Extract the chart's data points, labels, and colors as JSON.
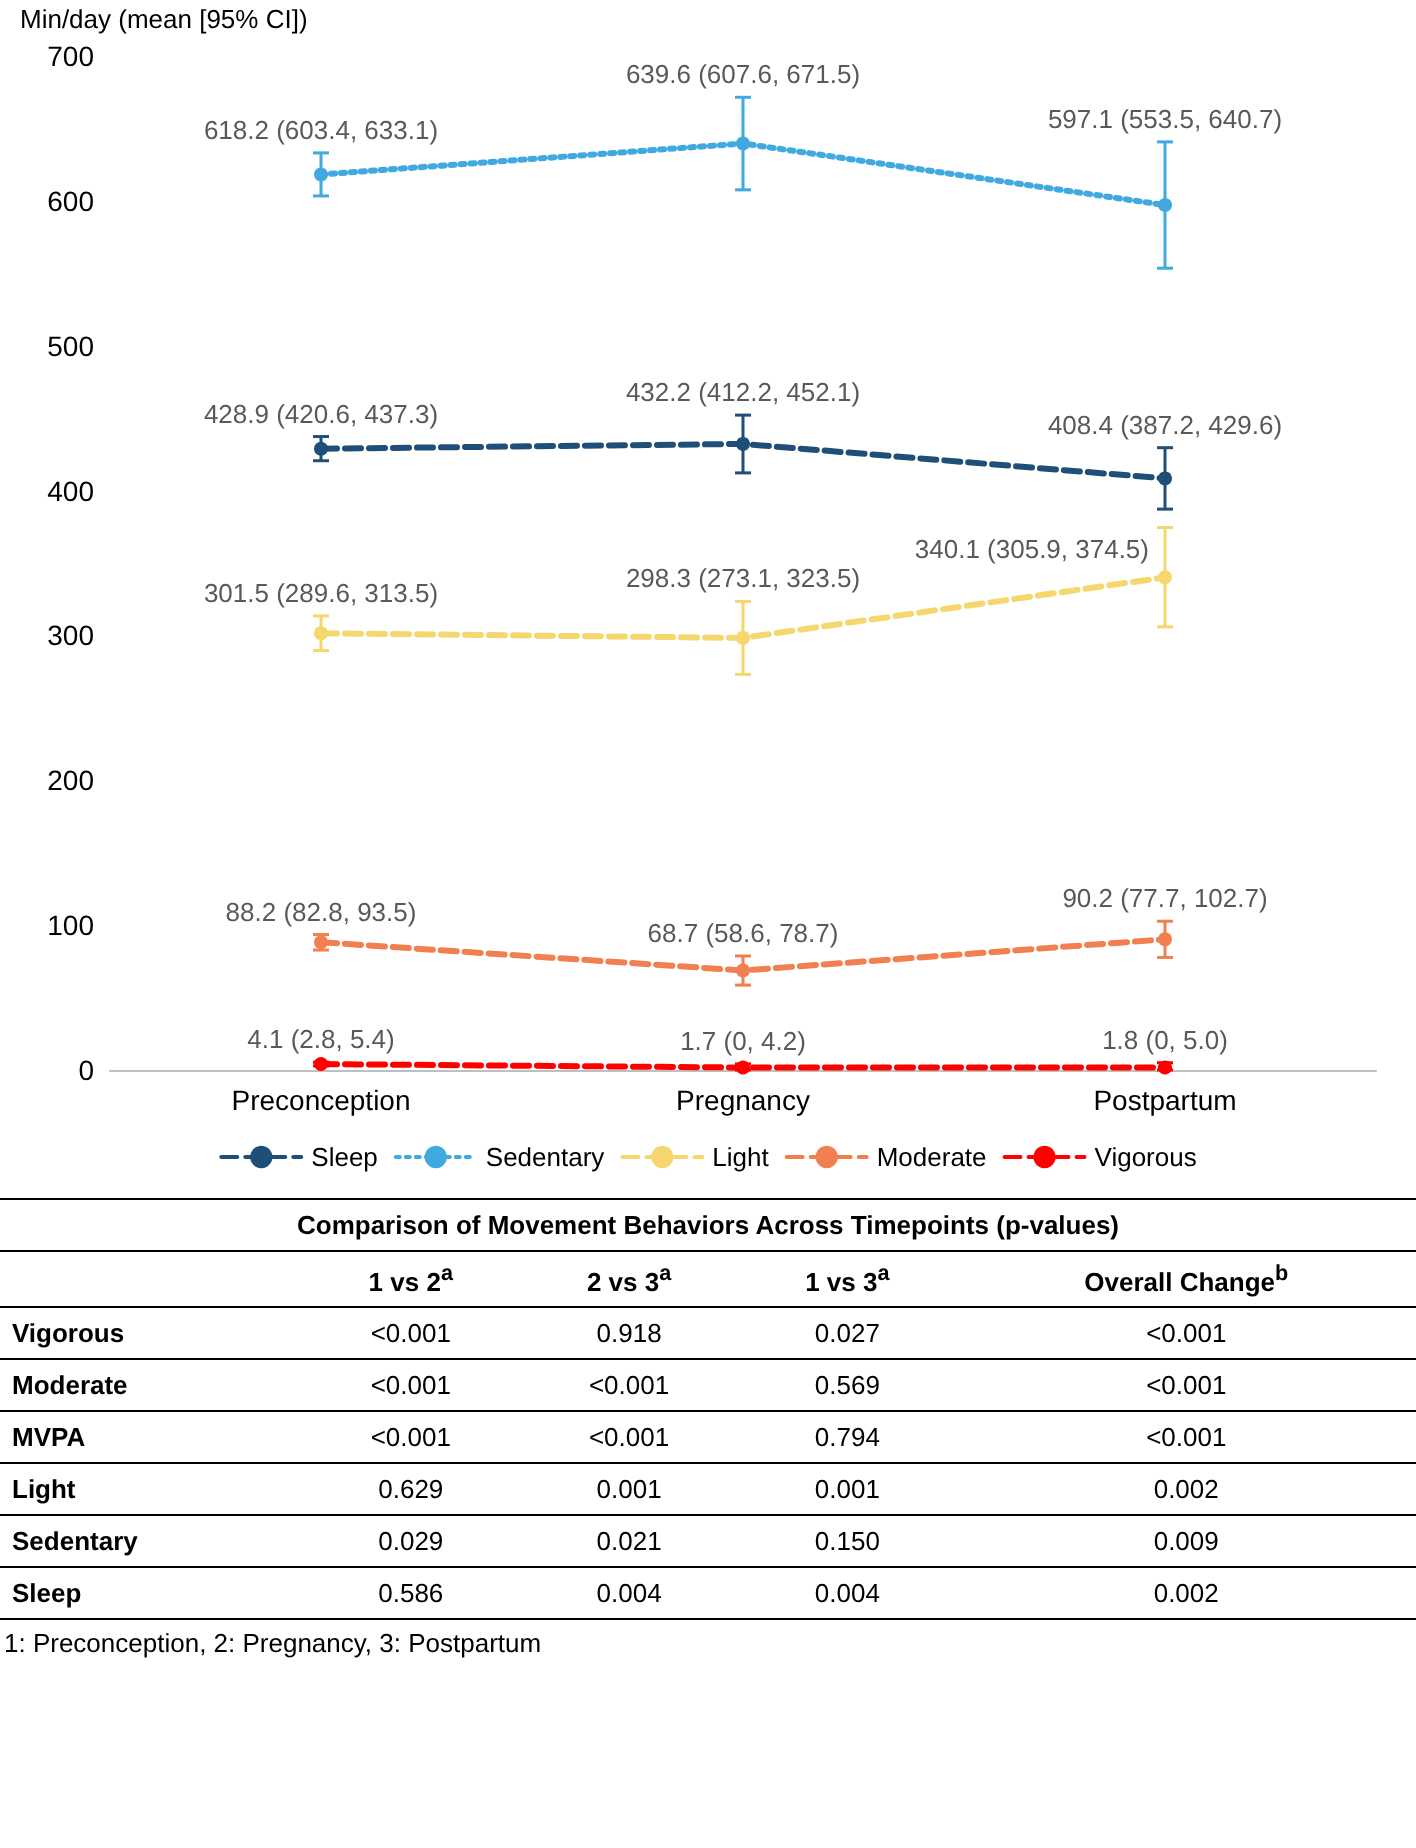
{
  "chart_data": [
    {
      "type": "line",
      "ylabel": "Min/day (mean [95% CI])",
      "categories": [
        "Preconception",
        "Pregnancy",
        "Postpartum"
      ],
      "ylim": [
        0,
        700
      ],
      "yticks": [
        0,
        100,
        200,
        300,
        400,
        500,
        600,
        700
      ],
      "grid": false,
      "legend": "bottom",
      "marker": "circle",
      "series": [
        {
          "name": "Sleep",
          "color": "#1f4e79",
          "line_style": "dashed",
          "values": [
            428.9,
            432.2,
            408.4
          ],
          "errors": [
            [
              420.6,
              437.3
            ],
            [
              412.2,
              452.1
            ],
            [
              387.2,
              429.6
            ]
          ],
          "value_labels": [
            "428.9 (420.6, 437.3)",
            "432.2 (412.2, 452.1)",
            "408.4 (387.2, 429.6)"
          ]
        },
        {
          "name": "Sedentary",
          "color": "#3fa9e0",
          "line_style": "dotted",
          "values": [
            618.2,
            639.6,
            597.1
          ],
          "errors": [
            [
              603.4,
              633.1
            ],
            [
              607.6,
              671.5
            ],
            [
              553.5,
              640.7
            ]
          ],
          "value_labels": [
            "618.2 (603.4, 633.1)",
            "639.6 (607.6, 671.5)",
            "597.1 (553.5, 640.7)"
          ]
        },
        {
          "name": "Light",
          "color": "#f5d76e",
          "line_style": "dashed",
          "values": [
            301.5,
            298.3,
            340.1
          ],
          "errors": [
            [
              289.6,
              313.5
            ],
            [
              273.1,
              323.5
            ],
            [
              305.9,
              374.5
            ]
          ],
          "value_labels": [
            "301.5 (289.6, 313.5)",
            "298.3 (273.1, 323.5)",
            "340.1 (305.9, 374.5)"
          ]
        },
        {
          "name": "Moderate",
          "color": "#f08050",
          "line_style": "dashed",
          "values": [
            88.2,
            68.7,
            90.2
          ],
          "errors": [
            [
              82.8,
              93.5
            ],
            [
              58.6,
              78.7
            ],
            [
              77.7,
              102.7
            ]
          ],
          "value_labels": [
            "88.2 (82.8, 93.5)",
            "68.7 (58.6, 78.7)",
            "90.2 (77.7, 102.7)"
          ]
        },
        {
          "name": "Vigorous",
          "color": "#ff0000",
          "line_style": "dashed",
          "values": [
            4.1,
            1.7,
            1.8
          ],
          "errors": [
            [
              2.8,
              5.4
            ],
            [
              0,
              4.2
            ],
            [
              0,
              5.0
            ]
          ],
          "value_labels": [
            "4.1 (2.8, 5.4)",
            "1.7 (0, 4.2)",
            "1.8 (0, 5.0)"
          ]
        }
      ]
    },
    {
      "type": "other",
      "title": "Comparison of Movement Behaviors Across Timepoints (p-values)",
      "categories": [
        "1 vs 2$^{a}$",
        "2 vs 3$^{a}$",
        "1 vs 3$^{a}$",
        "Overall Change$^{b}$"
      ],
      "y_categories": [
        "Vigorous",
        "Moderate",
        "MVPA",
        "Light",
        "Sedentary",
        "Sleep"
      ],
      "cell_labels": [
        [
          "<0.001",
          "0.918",
          "0.027",
          "<0.001"
        ],
        [
          "<0.001",
          "<0.001",
          "0.569",
          "<0.001"
        ],
        [
          "<0.001",
          "<0.001",
          "0.794",
          "<0.001"
        ],
        [
          "0.629",
          "0.001",
          "0.001",
          "0.002"
        ],
        [
          "0.029",
          "0.021",
          "0.150",
          "0.009"
        ],
        [
          "0.586",
          "0.004",
          "0.004",
          "0.002"
        ]
      ],
      "annotations": [
        "1: Preconception, 2: Pregnancy, 3: Postpartum"
      ]
    }
  ]
}
